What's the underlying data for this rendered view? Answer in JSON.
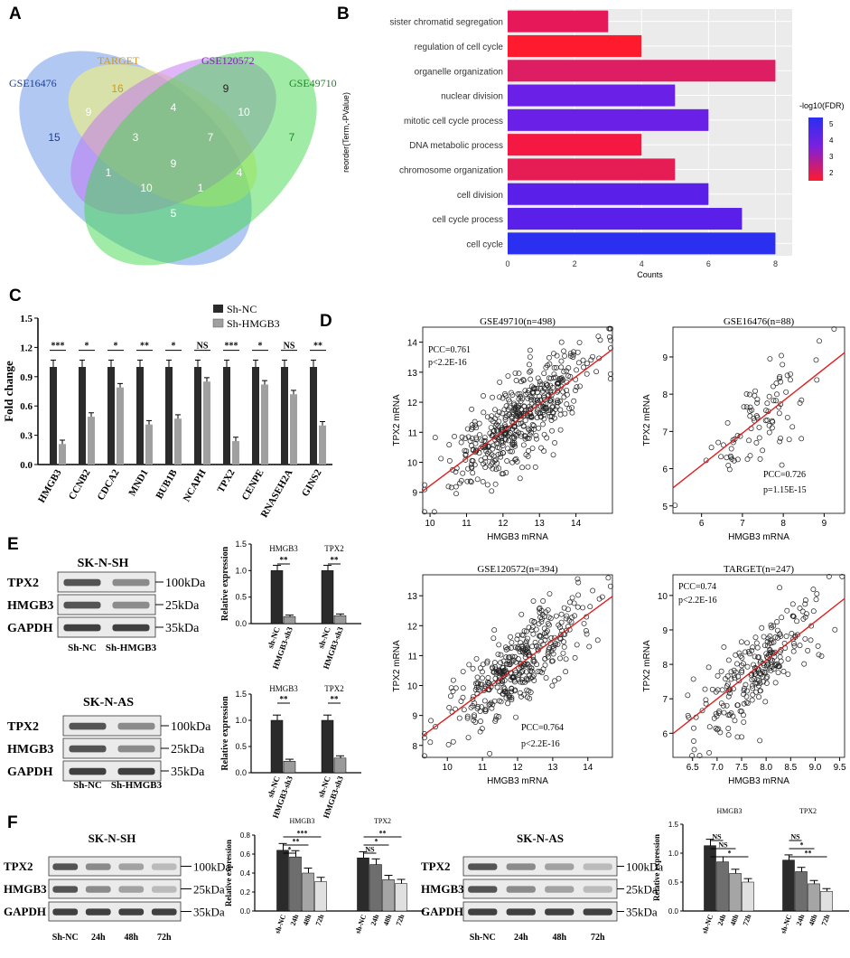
{
  "panels": {
    "a": "A",
    "b": "B",
    "c": "C",
    "d": "D",
    "e": "E",
    "f": "F"
  },
  "colors": {
    "venn_blue": "#6f9be8",
    "venn_yellow": "#f4f27a",
    "venn_purple": "#c06ef2",
    "venn_green": "#41d84b",
    "venn_teal": "#39b8b0",
    "bar_dark": "#2b2b2b",
    "bar_gray": "#a0a0a0",
    "regline": "#e01e1e"
  },
  "venn": {
    "sets": [
      "GSE16476",
      "TARGET",
      "GSE120572",
      "GSE49710"
    ],
    "counts": [
      "15",
      "16",
      "9",
      "7",
      "9",
      "4",
      "10",
      "3",
      "7",
      "1",
      "9",
      "4",
      "10",
      "1",
      "5"
    ]
  },
  "chart_data": [
    {
      "id": "B",
      "type": "bar",
      "orientation": "horizontal",
      "ylabel": "reorder(Term,-PValue)",
      "xlabel": "Counts",
      "xlim": [
        0,
        8.5
      ],
      "xticks": [
        "0",
        "2",
        "4",
        "6",
        "8"
      ],
      "legend_title": "-log10(FDR)",
      "legend_ticks": [
        "5",
        "4",
        "3",
        "2"
      ],
      "categories": [
        "sister chromatid segregation",
        "regulation of cell cycle",
        "organelle organization",
        "nuclear division",
        "mitotic cell cycle process",
        "DNA metabolic process",
        "chromosome organization",
        "cell division",
        "cell cycle process",
        "cell cycle"
      ],
      "values": [
        3,
        4,
        8,
        5,
        6,
        4,
        5,
        6,
        7,
        8
      ],
      "colors": [
        "#e6185a",
        "#ff1a2e",
        "#de1e63",
        "#6a20e6",
        "#6a20e6",
        "#f51842",
        "#e61c55",
        "#5a20ea",
        "#5a20ea",
        "#2a2ff0"
      ]
    },
    {
      "id": "C",
      "type": "bar",
      "ylabel": "Fold change",
      "yticks": [
        "0.0",
        "0.3",
        "0.6",
        "0.9",
        "1.2",
        "1.5"
      ],
      "ylim": [
        0,
        1.5
      ],
      "legend": [
        "Sh-NC",
        "Sh-HMGB3"
      ],
      "categories": [
        "HMGB3",
        "CCNB2",
        "CDCA2",
        "MND1",
        "BUB1B",
        "NCAPH",
        "TPX2",
        "CENPE",
        "RNASEH2A",
        "GINS2"
      ],
      "series": [
        {
          "name": "Sh-NC",
          "values": [
            1,
            1,
            1,
            1,
            1,
            1,
            1,
            1,
            1,
            1
          ]
        },
        {
          "name": "Sh-HMGB3",
          "values": [
            0.21,
            0.49,
            0.79,
            0.41,
            0.47,
            0.85,
            0.24,
            0.82,
            0.72,
            0.4
          ]
        }
      ],
      "sig": [
        "***",
        "*",
        "*",
        "**",
        "*",
        "NS",
        "***",
        "*",
        "NS",
        "**"
      ]
    },
    {
      "id": "D1",
      "type": "scatter",
      "title": "GSE49710(n=498)",
      "xlabel": "HMGB3 mRNA",
      "ylabel": "TPX2 mRNA",
      "pcc": "PCC=0.761",
      "pval": "p<2.2E-16",
      "xticks": [
        "10",
        "11",
        "12",
        "13",
        "14"
      ],
      "yticks": [
        "9",
        "10",
        "11",
        "12",
        "13",
        "14"
      ],
      "xlim": [
        9.8,
        15
      ],
      "ylim": [
        8.3,
        14.5
      ],
      "n": 498,
      "r": 0.761,
      "seed": 11
    },
    {
      "id": "D2",
      "type": "scatter",
      "title": "GSE16476(n=88)",
      "xlabel": "HMGB3 mRNA",
      "ylabel": "TPX2 mRNA",
      "pcc": "PCC=0.726",
      "pval": "p=1.15E-15",
      "xticks": [
        "6",
        "7",
        "8",
        "9"
      ],
      "yticks": [
        "5",
        "6",
        "7",
        "8",
        "9"
      ],
      "xlim": [
        5.3,
        9.5
      ],
      "ylim": [
        4.8,
        9.8
      ],
      "n": 88,
      "r": 0.726,
      "seed": 23
    },
    {
      "id": "D3",
      "type": "scatter",
      "title": "GSE120572(n=394)",
      "xlabel": "HMGB3 mRNA",
      "ylabel": "TPX2 mRNA",
      "pcc": "PCC=0.764",
      "pval": "p<2.2E-16",
      "xticks": [
        "10",
        "11",
        "12",
        "13",
        "14"
      ],
      "yticks": [
        "8",
        "9",
        "10",
        "11",
        "12",
        "13"
      ],
      "xlim": [
        9.3,
        14.7
      ],
      "ylim": [
        7.6,
        13.7
      ],
      "n": 394,
      "r": 0.764,
      "seed": 37
    },
    {
      "id": "D4",
      "type": "scatter",
      "title": "TARGET(n=247)",
      "xlabel": "HMGB3 mRNA",
      "ylabel": "TPX2 mRNA",
      "pcc": "PCC=0.74",
      "pval": "p<2.2E-16",
      "xticks": [
        "6.5",
        "7.0",
        "7.5",
        "8.0",
        "8.5",
        "9.0",
        "9.5"
      ],
      "yticks": [
        "6",
        "7",
        "8",
        "9",
        "10"
      ],
      "xlim": [
        6.1,
        9.6
      ],
      "ylim": [
        5.3,
        10.6
      ],
      "n": 247,
      "r": 0.74,
      "seed": 53
    },
    {
      "id": "E1",
      "type": "bar",
      "ylabel": "Relative expression",
      "yticks": [
        "0.0",
        "0.5",
        "1.0",
        "1.5"
      ],
      "ylim": [
        0,
        1.5
      ],
      "groups": [
        "HMGB3",
        "TPX2"
      ],
      "categories": [
        "sh-NC",
        "HMGB3-sh3",
        "sh-NC",
        "HMGB3-sh3"
      ],
      "values": [
        1.0,
        0.13,
        1.0,
        0.15
      ],
      "sig": [
        "**",
        "**"
      ]
    },
    {
      "id": "E2",
      "type": "bar",
      "ylabel": "Relative expression",
      "yticks": [
        "0.0",
        "0.5",
        "1.0",
        "1.5"
      ],
      "ylim": [
        0,
        1.5
      ],
      "groups": [
        "HMGB3",
        "TPX2"
      ],
      "categories": [
        "sh-NC",
        "HMGB3-sh3",
        "sh-NC",
        "HMGB3-sh3"
      ],
      "values": [
        1.0,
        0.22,
        1.0,
        0.28
      ],
      "sig": [
        "**",
        "**"
      ]
    },
    {
      "id": "F1",
      "type": "bar",
      "ylabel": "Relative expression",
      "yticks": [
        "0.0",
        "0.2",
        "0.4",
        "0.6",
        "0.8"
      ],
      "ylim": [
        0,
        0.8
      ],
      "groups": [
        "HMGB3",
        "TPX2"
      ],
      "categories": [
        "sh-NC",
        "24h",
        "48h",
        "72h",
        "sh-NC",
        "24h",
        "48h",
        "72h"
      ],
      "values": [
        0.64,
        0.57,
        0.4,
        0.31,
        0.56,
        0.49,
        0.33,
        0.29
      ],
      "sig": [
        "*",
        "**",
        "***",
        "NS",
        "*",
        "**"
      ]
    },
    {
      "id": "F2",
      "type": "bar",
      "ylabel": "Relative expression",
      "yticks": [
        "0.0",
        "0.5",
        "1.0",
        "1.5"
      ],
      "ylim": [
        0,
        1.5
      ],
      "groups": [
        "HMGB3",
        "TPX2"
      ],
      "categories": [
        "sh-NC",
        "24h",
        "48h",
        "72h",
        "sh-NC",
        "24h",
        "48h",
        "72h"
      ],
      "values": [
        1.13,
        0.85,
        0.65,
        0.5,
        0.88,
        0.68,
        0.47,
        0.34
      ],
      "sig": [
        "NS",
        "NS",
        "*",
        "NS",
        "*",
        "**"
      ]
    }
  ],
  "blots": {
    "e1": {
      "title": "SK-N-SH",
      "rows": [
        "TPX2",
        "HMGB3",
        "GAPDH"
      ],
      "kda": [
        "100kDa",
        "25kDa",
        "35kDa"
      ],
      "lanes": [
        "Sh-NC",
        "Sh-HMGB3"
      ]
    },
    "e2": {
      "title": "SK-N-AS",
      "rows": [
        "TPX2",
        "HMGB3",
        "GAPDH"
      ],
      "kda": [
        "100kDa",
        "25kDa",
        "35kDa"
      ],
      "lanes": [
        "Sh-NC",
        "Sh-HMGB3"
      ]
    },
    "f1": {
      "title": "SK-N-SH",
      "rows": [
        "TPX2",
        "HMGB3",
        "GAPDH"
      ],
      "kda": [
        "100kDa",
        "25kDa",
        "35kDa"
      ],
      "lanes": [
        "Sh-NC",
        "24h",
        "48h",
        "72h"
      ]
    },
    "f2": {
      "title": "SK-N-AS",
      "rows": [
        "TPX2",
        "HMGB3",
        "GAPDH"
      ],
      "kda": [
        "100kDa",
        "25kDa",
        "35kDa"
      ],
      "lanes": [
        "Sh-NC",
        "24h",
        "48h",
        "72h"
      ]
    }
  }
}
